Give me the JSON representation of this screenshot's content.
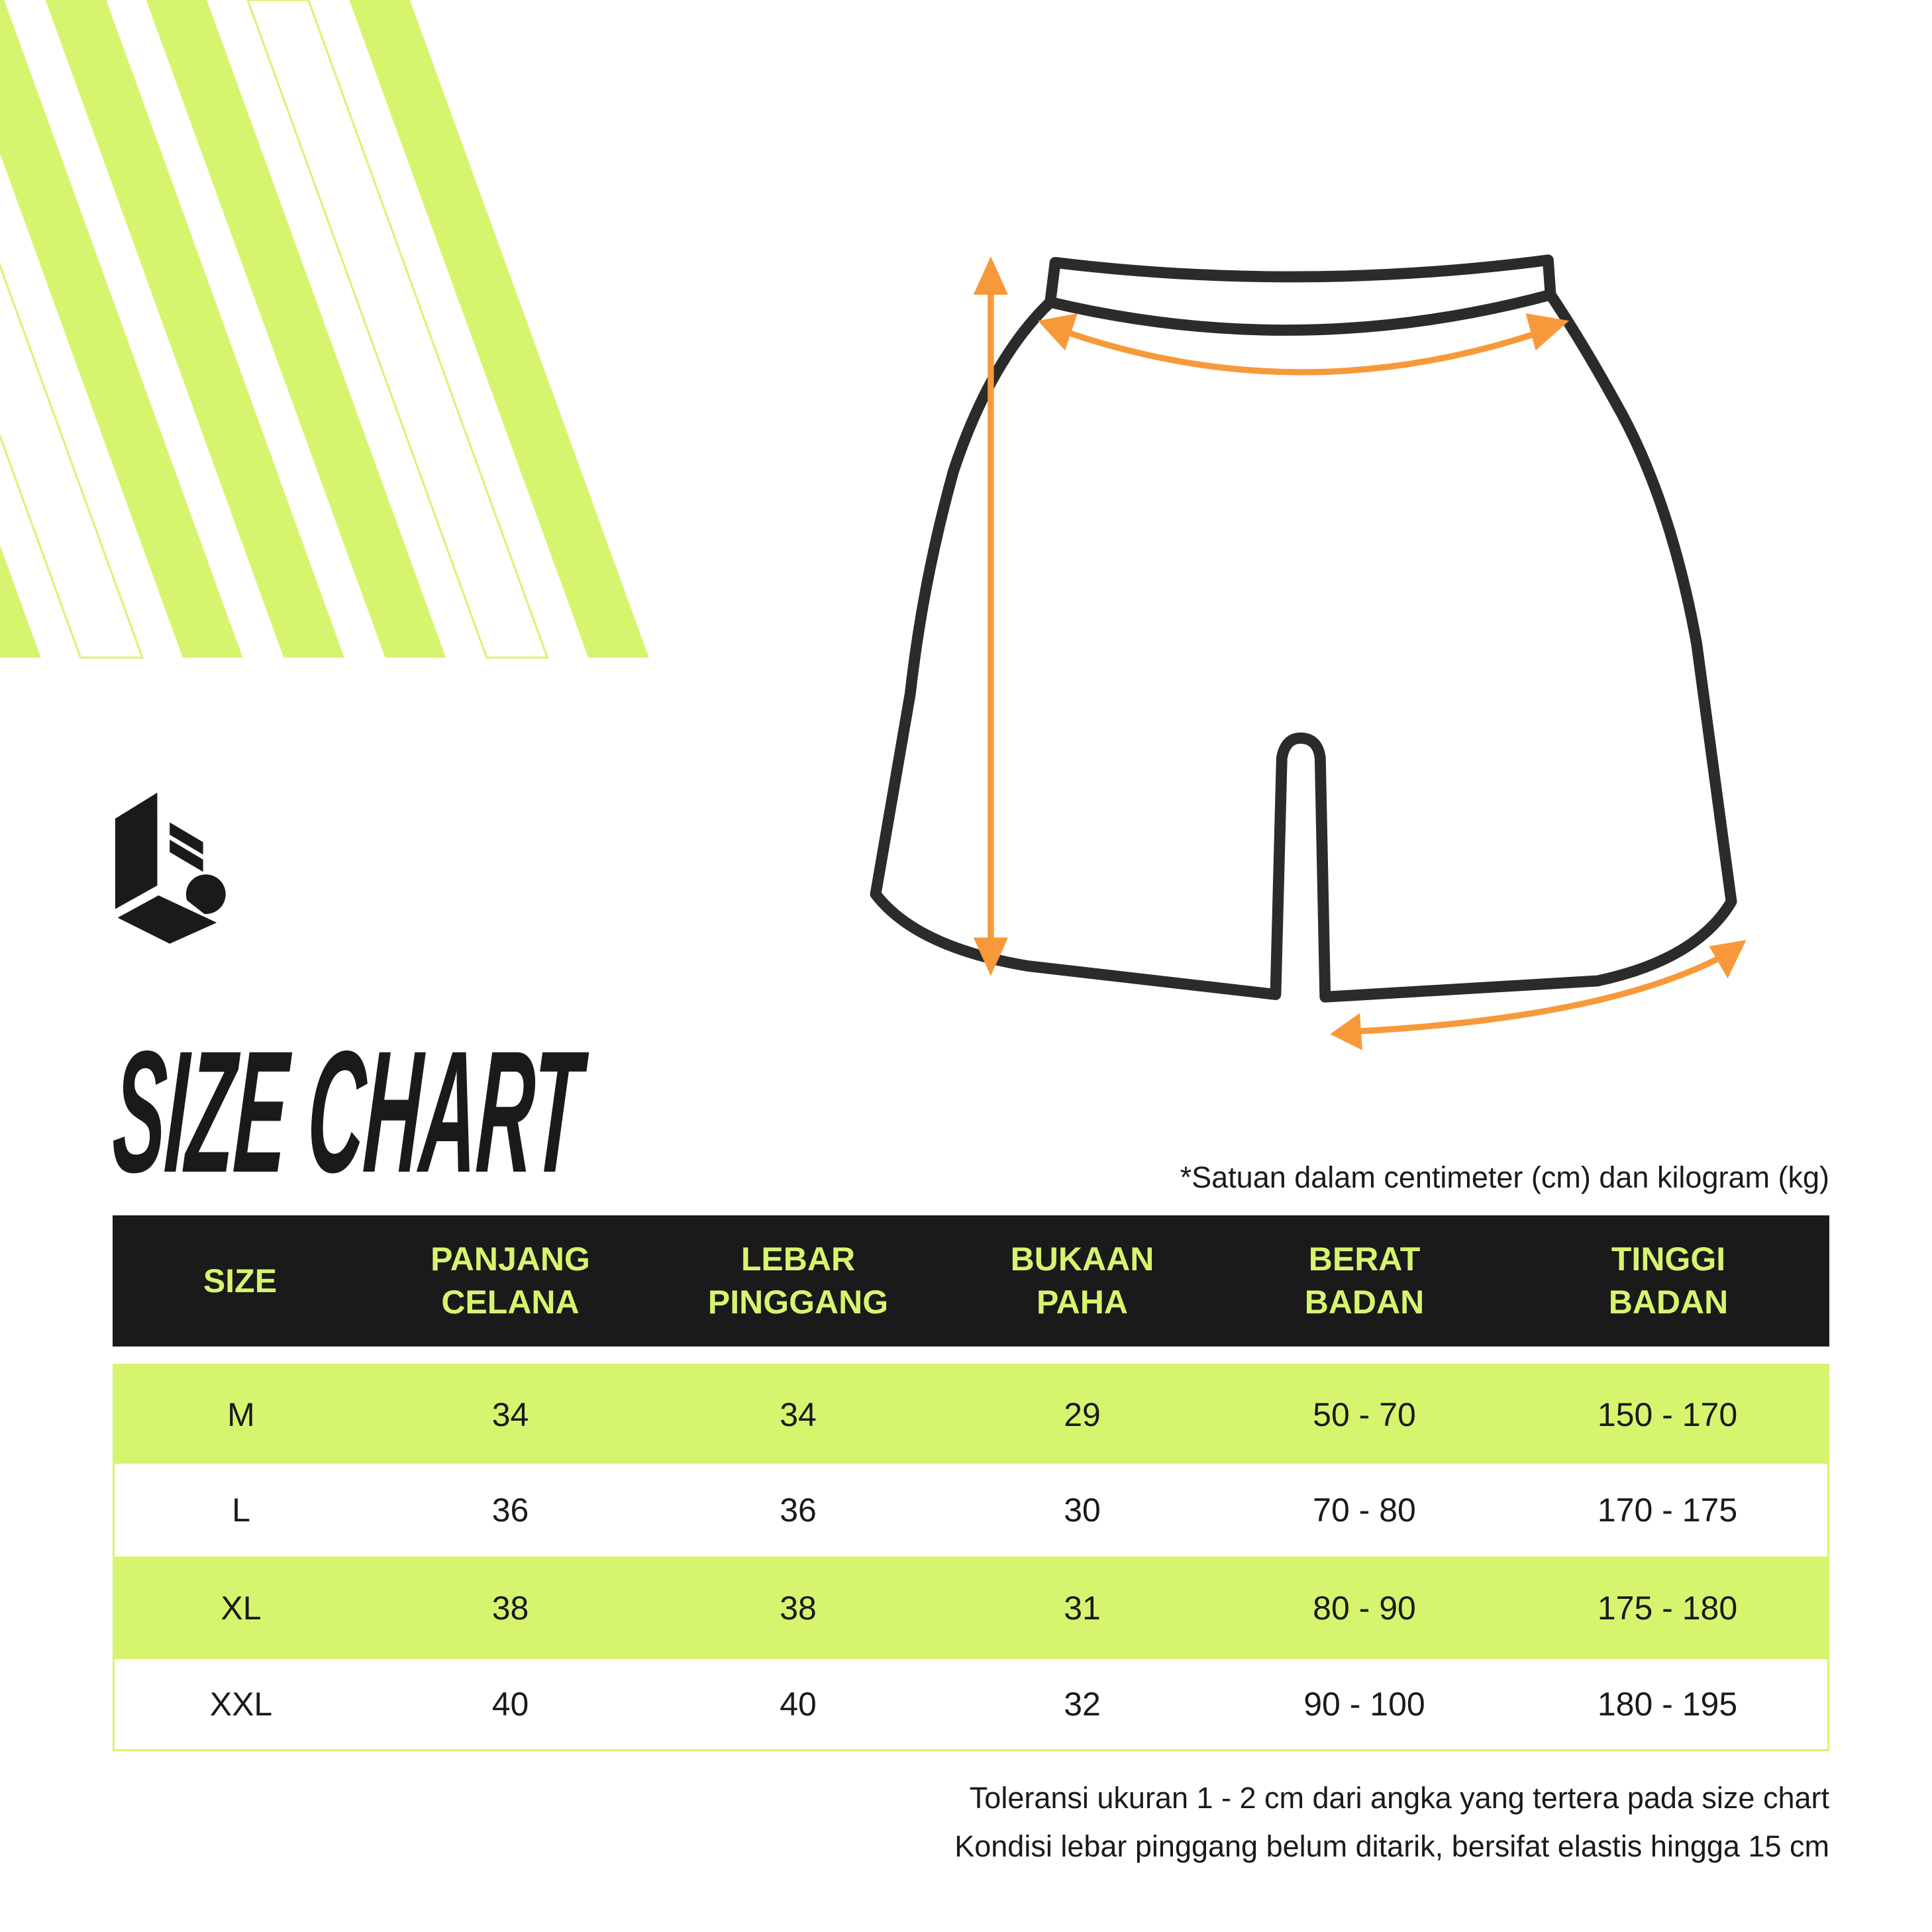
{
  "colors": {
    "accent": "#d7f46f",
    "dark": "#1a1a1a",
    "arrow": "#f7993a"
  },
  "logo": {
    "name": "brand-logo"
  },
  "title": "SIZE CHART",
  "unit_note": "*Satuan dalam centimeter (cm) dan kilogram (kg)",
  "table": {
    "headers": [
      "SIZE",
      "PANJANG\nCELANA",
      "LEBAR\nPINGGANG",
      "BUKAAN\nPAHA",
      "BERAT\nBADAN",
      "TINGGI\nBADAN"
    ],
    "rows": [
      [
        "M",
        "34",
        "34",
        "29",
        "50 - 70",
        "150 - 170"
      ],
      [
        "L",
        "36",
        "36",
        "30",
        "70 - 80",
        "170 - 175"
      ],
      [
        "XL",
        "38",
        "38",
        "31",
        "80 - 90",
        "175 - 180"
      ],
      [
        "XXL",
        "40",
        "40",
        "32",
        "90 - 100",
        "180 - 195"
      ]
    ]
  },
  "footer": [
    "Toleransi ukuran 1 - 2 cm dari angka yang tertera pada size chart",
    "Kondisi lebar pinggang belum ditarik, bersifat elastis hingga 15 cm"
  ]
}
